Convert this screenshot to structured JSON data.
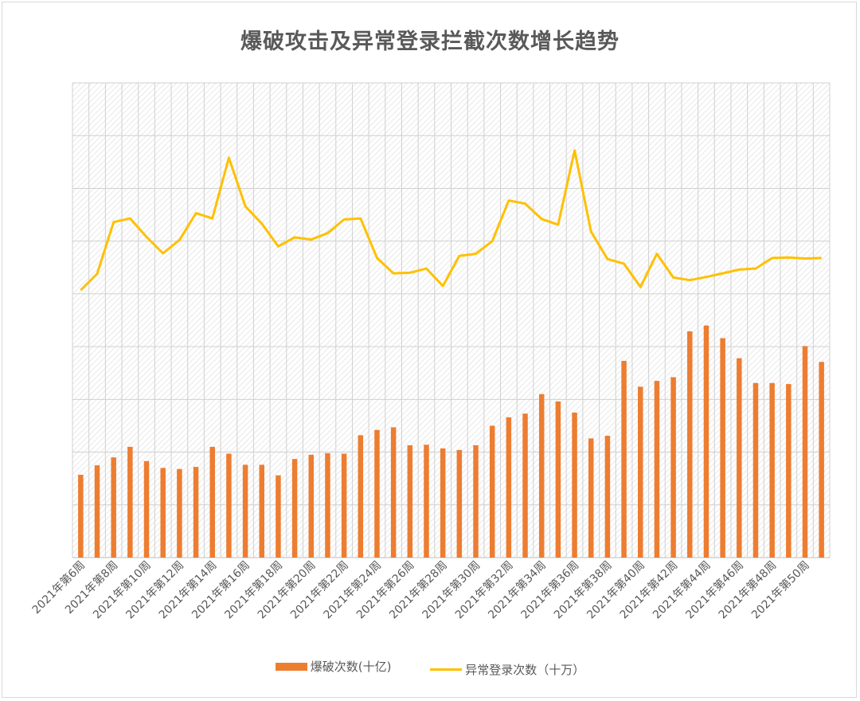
{
  "chart_data": {
    "type": "bar+line",
    "title": "爆破攻击及异常登录拦截次数增长趋势",
    "categories": [
      "2021年第6周",
      "2021年第7周",
      "2021年第8周",
      "2021年第9周",
      "2021年第10周",
      "2021年第11周",
      "2021年第12周",
      "2021年第13周",
      "2021年第14周",
      "2021年第15周",
      "2021年第16周",
      "2021年第17周",
      "2021年第18周",
      "2021年第19周",
      "2021年第20周",
      "2021年第21周",
      "2021年第22周",
      "2021年第23周",
      "2021年第24周",
      "2021年第25周",
      "2021年第26周",
      "2021年第27周",
      "2021年第28周",
      "2021年第29周",
      "2021年第30周",
      "2021年第31周",
      "2021年第32周",
      "2021年第33周",
      "2021年第34周",
      "2021年第35周",
      "2021年第36周",
      "2021年第37周",
      "2021年第38周",
      "2021年第39周",
      "2021年第40周",
      "2021年第41周",
      "2021年第42周",
      "2021年第43周",
      "2021年第44周",
      "2021年第45周",
      "2021年第46周",
      "2021年第47周",
      "2021年第48周",
      "2021年第49周",
      "2021年第50周",
      "2021年第51周"
    ],
    "tick_labels_shown": [
      "2021年第6周",
      "2021年第8周",
      "2021年第10周",
      "2021年第12周",
      "2021年第14周",
      "2021年第16周",
      "2021年第18周",
      "2021年第20周",
      "2021年第22周",
      "2021年第24周",
      "2021年第26周",
      "2021年第28周",
      "2021年第30周",
      "2021年第32周",
      "2021年第34周",
      "2021年第36周",
      "2021年第38周",
      "2021年第40周",
      "2021年第42周",
      "2021年第44周",
      "2021年第46周",
      "2021年第48周",
      "2021年第50周"
    ],
    "series": [
      {
        "name": "爆破次数(十亿)",
        "type": "bar",
        "color": "#ed7d31",
        "values": [
          1.57,
          1.75,
          1.9,
          2.1,
          1.83,
          1.7,
          1.68,
          1.72,
          2.1,
          1.97,
          1.76,
          1.76,
          1.56,
          1.87,
          1.95,
          1.98,
          1.97,
          2.32,
          2.42,
          2.47,
          2.13,
          2.14,
          2.07,
          2.04,
          2.13,
          2.5,
          2.66,
          2.73,
          3.1,
          2.96,
          2.75,
          2.26,
          2.31,
          3.73,
          3.24,
          3.35,
          3.42,
          4.29,
          4.4,
          4.16,
          3.78,
          3.31,
          3.31,
          3.29,
          4.01,
          3.71
        ]
      },
      {
        "name": "异常登录次数（十万）",
        "type": "line",
        "color": "#ffc000",
        "values": [
          5.07,
          5.38,
          6.36,
          6.43,
          6.08,
          5.77,
          6.02,
          6.53,
          6.43,
          7.58,
          6.66,
          6.33,
          5.9,
          6.07,
          6.03,
          6.15,
          6.41,
          6.43,
          5.68,
          5.39,
          5.4,
          5.48,
          5.15,
          5.72,
          5.76,
          6.0,
          6.77,
          6.71,
          6.42,
          6.31,
          7.72,
          6.18,
          5.66,
          5.57,
          5.13,
          5.76,
          5.31,
          5.26,
          5.32,
          5.39,
          5.46,
          5.48,
          5.68,
          5.69,
          5.67,
          5.68
        ]
      }
    ],
    "ylim": [
      0,
      9
    ],
    "grid": true,
    "legend_position": "bottom"
  }
}
